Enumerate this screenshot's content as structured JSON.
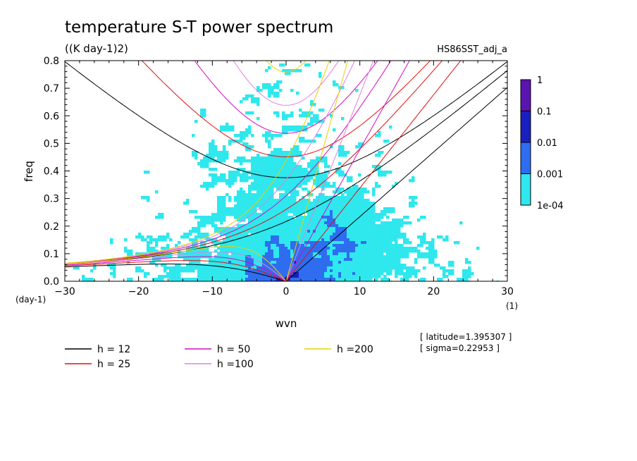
{
  "chart_data": {
    "type": "heatmap",
    "title": "temperature S-T power spectrum",
    "subtitle": "((K day-1)2)",
    "dataset_label": "HS86SST_adj_a",
    "xlabel": "wvn",
    "ylabel": "freq",
    "x_unit": "(1)",
    "y_unit": "(day-1)",
    "xlim": [
      -30,
      30
    ],
    "ylim": [
      0,
      0.8
    ],
    "x_ticks": [
      -30,
      -20,
      -10,
      0,
      10,
      20,
      30
    ],
    "x_tick_labels": [
      "-30",
      "-20",
      "-10",
      "0",
      "10",
      "20",
      "30"
    ],
    "y_ticks": [
      0,
      0.1,
      0.2,
      0.3,
      0.4,
      0.5,
      0.6,
      0.7,
      0.8
    ],
    "y_tick_labels": [
      "0.0",
      "0.1",
      "0.2",
      "0.3",
      "0.4",
      "0.5",
      "0.6",
      "0.7",
      "0.8"
    ],
    "colorbar": {
      "levels": [
        0.0001,
        0.001,
        0.01,
        0.1,
        1
      ],
      "labels": [
        "1e-04",
        "0.001",
        "0.01",
        "0.1",
        "1"
      ],
      "colors": [
        "#2ee8ee",
        "#2f6df0",
        "#1a1fbf",
        "#5a14b0"
      ]
    },
    "legend": [
      {
        "label": "h = 12",
        "h": 12,
        "color": "#000000"
      },
      {
        "label": "h = 25",
        "h": 25,
        "color": "#e01010"
      },
      {
        "label": "h = 50",
        "h": 50,
        "color": "#d010c0"
      },
      {
        "label": "h =100",
        "h": 100,
        "color": "#e080e0"
      },
      {
        "label": "h =200",
        "h": 200,
        "color": "#e8d000"
      }
    ],
    "annotations": [
      "[ latitude=1.395307 ]",
      "[ sigma=0.22953 ]"
    ]
  }
}
